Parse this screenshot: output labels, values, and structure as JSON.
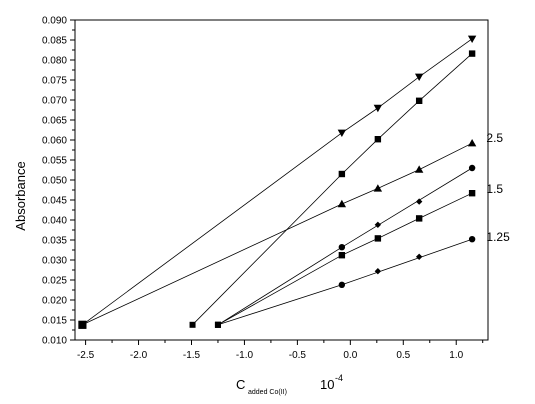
{
  "chart_data": {
    "type": "scatter",
    "title": "",
    "ylabel": "Absorbance",
    "xlabel": {
      "main": "C",
      "subscript": "added Co(II)",
      "scale": "10",
      "exponent": "-4"
    },
    "xlim": [
      -2.6,
      1.3
    ],
    "ylim": [
      0.01,
      0.09
    ],
    "x_ticks": [
      "-2.5",
      "-2.0",
      "-1.5",
      "-1.0",
      "-0.5",
      "0.0",
      "0.5",
      "1.0"
    ],
    "y_ticks": [
      "0.010",
      "0.015",
      "0.020",
      "0.025",
      "0.030",
      "0.035",
      "0.040",
      "0.045",
      "0.050",
      "0.055",
      "0.060",
      "0.065",
      "0.070",
      "0.075",
      "0.080",
      "0.085",
      "0.090"
    ],
    "grid": false,
    "series": [
      {
        "marker": "triangle-down",
        "points": [
          [
            -0.08,
            0.0618
          ],
          [
            0.26,
            0.068
          ],
          [
            0.65,
            0.0758
          ],
          [
            1.15,
            0.0853
          ]
        ],
        "intercept": [
          -2.53,
          0.0138
        ]
      },
      {
        "marker": "square",
        "points": [
          [
            -0.08,
            0.0515
          ],
          [
            0.26,
            0.0602
          ],
          [
            0.65,
            0.0698
          ],
          [
            1.15,
            0.0816
          ]
        ],
        "intercept": [
          -1.49,
          0.0138
        ]
      },
      {
        "name": "2.5",
        "marker": "triangle-up",
        "points": [
          [
            -0.08,
            0.044
          ],
          [
            0.26,
            0.0479
          ],
          [
            0.65,
            0.0526
          ],
          [
            1.15,
            0.0592
          ]
        ],
        "intercept": [
          -2.53,
          0.0138
        ]
      },
      {
        "name": "1.5",
        "marker": "square",
        "points": [
          [
            -0.08,
            0.0312
          ],
          [
            0.26,
            0.0354
          ],
          [
            0.65,
            0.0404
          ],
          [
            1.15,
            0.0467
          ]
        ],
        "intercept": [
          -1.25,
          0.0138
        ]
      },
      {
        "marker": "circle",
        "points": [
          [
            -0.08,
            0.0332
          ],
          [
            1.15,
            0.053
          ]
        ],
        "intercept": [
          -1.25,
          0.0138
        ]
      },
      {
        "marker": "diamond",
        "points": [
          [
            0.26,
            0.0388
          ],
          [
            0.65,
            0.0446
          ]
        ],
        "intercept": null
      },
      {
        "name": "1.25",
        "marker": "circle",
        "points": [
          [
            -0.08,
            0.0238
          ],
          [
            1.15,
            0.0352
          ]
        ],
        "intercept": [
          -1.25,
          0.0138
        ]
      },
      {
        "marker": "diamond",
        "points": [
          [
            0.26,
            0.0272
          ],
          [
            0.65,
            0.0308
          ]
        ],
        "intercept": null
      }
    ],
    "annotations": [
      {
        "text": "2.5",
        "x": 1.2,
        "y": 0.0605
      },
      {
        "text": "1.5",
        "x": 1.2,
        "y": 0.0478
      },
      {
        "text": "1.25",
        "x": 1.2,
        "y": 0.0357
      }
    ]
  }
}
